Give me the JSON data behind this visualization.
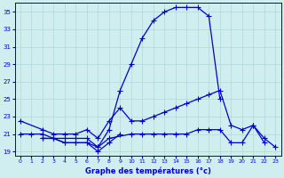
{
  "title": "Graphe des températures (°c)",
  "background_color": "#d0eef0",
  "grid_color": "#b0d8d8",
  "line_color": "#0000cc",
  "xlim": [
    -0.5,
    23.5
  ],
  "ylim": [
    18.5,
    36.0
  ],
  "yticks": [
    19,
    21,
    23,
    25,
    27,
    29,
    31,
    33,
    35
  ],
  "xticks": [
    0,
    1,
    2,
    3,
    4,
    5,
    6,
    7,
    8,
    9,
    10,
    11,
    12,
    13,
    14,
    15,
    16,
    17,
    18,
    19,
    20,
    21,
    22,
    23
  ],
  "series": [
    {
      "x": [
        0,
        1,
        2,
        3,
        4,
        5,
        6,
        7,
        8,
        9,
        10,
        11,
        12,
        13,
        14,
        15,
        16,
        17,
        18
      ],
      "y": [
        21.0,
        21.0,
        21.0,
        20.5,
        20.5,
        20.5,
        20.5,
        19.5,
        21.5,
        26.0,
        29.0,
        32.0,
        34.0,
        35.0,
        35.5,
        35.5,
        35.5,
        34.5,
        25.0
      ]
    },
    {
      "x": [
        0,
        2,
        3,
        4,
        5,
        6,
        7,
        8,
        9,
        10,
        11,
        12,
        13,
        14,
        15,
        16,
        17,
        18,
        19,
        20,
        21,
        22,
        23
      ],
      "y": [
        22.5,
        21.5,
        21.0,
        21.0,
        21.0,
        21.5,
        20.5,
        22.5,
        24.0,
        22.5,
        22.5,
        23.0,
        23.5,
        24.0,
        24.5,
        25.0,
        25.5,
        26.0,
        22.0,
        21.5,
        22.0,
        20.5,
        19.5
      ]
    },
    {
      "x": [
        2,
        3,
        4,
        5,
        6,
        7,
        8,
        10,
        11,
        12,
        13,
        14,
        15,
        16,
        17,
        18,
        19,
        20,
        21,
        22
      ],
      "y": [
        20.5,
        20.5,
        20.0,
        20.0,
        20.0,
        19.5,
        20.5,
        21.0,
        21.0,
        21.0,
        21.0,
        21.0,
        21.0,
        21.5,
        21.5,
        21.5,
        20.0,
        20.0,
        22.0,
        20.0
      ]
    },
    {
      "x": [
        2,
        3,
        4,
        5,
        6,
        7,
        8,
        9
      ],
      "y": [
        20.5,
        20.5,
        20.0,
        20.0,
        20.0,
        19.0,
        20.0,
        21.0
      ]
    }
  ]
}
